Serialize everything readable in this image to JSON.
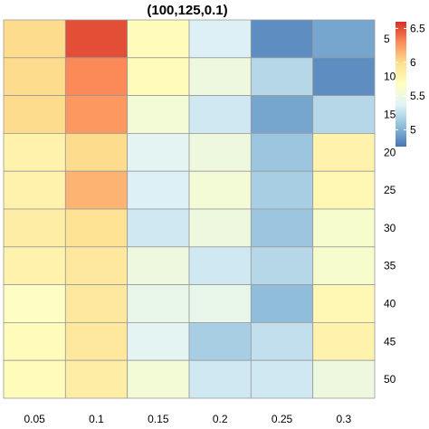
{
  "chart_data": {
    "type": "heatmap",
    "title": "(100,125,0.1)",
    "xlabel": "",
    "ylabel": "",
    "x_categories": [
      "0.05",
      "0.1",
      "0.15",
      "0.2",
      "0.25",
      "0.3"
    ],
    "y_categories": [
      "5",
      "10",
      "15",
      "20",
      "25",
      "30",
      "35",
      "40",
      "45",
      "50"
    ],
    "values": [
      [
        6.0,
        6.5,
        5.7,
        5.35,
        4.85,
        4.95
      ],
      [
        6.0,
        6.3,
        5.7,
        5.5,
        5.2,
        4.85
      ],
      [
        6.0,
        6.25,
        5.55,
        5.3,
        4.95,
        5.2
      ],
      [
        5.8,
        6.0,
        5.4,
        5.5,
        5.1,
        5.8
      ],
      [
        5.8,
        6.15,
        5.35,
        5.55,
        5.15,
        5.75
      ],
      [
        5.85,
        5.95,
        5.3,
        5.5,
        5.1,
        5.6
      ],
      [
        5.8,
        5.9,
        5.5,
        5.3,
        5.2,
        5.6
      ],
      [
        5.65,
        5.9,
        5.45,
        5.45,
        5.05,
        5.75
      ],
      [
        5.7,
        5.9,
        5.4,
        5.15,
        5.25,
        5.8
      ],
      [
        5.7,
        5.85,
        5.55,
        5.3,
        5.3,
        5.5
      ]
    ],
    "colorbar": {
      "min": 4.75,
      "max": 6.6,
      "ticks": [
        5,
        5.5,
        6,
        6.5
      ],
      "tick_labels": [
        "5",
        "5.5",
        "6",
        "6.5"
      ],
      "colors": [
        "#4575b4",
        "#91bfdb",
        "#e0f3f8",
        "#ffffbf",
        "#fee090",
        "#fc8d59",
        "#d73027"
      ]
    },
    "y_axis_position": "right",
    "legend_position": "top-right",
    "grid": false
  }
}
